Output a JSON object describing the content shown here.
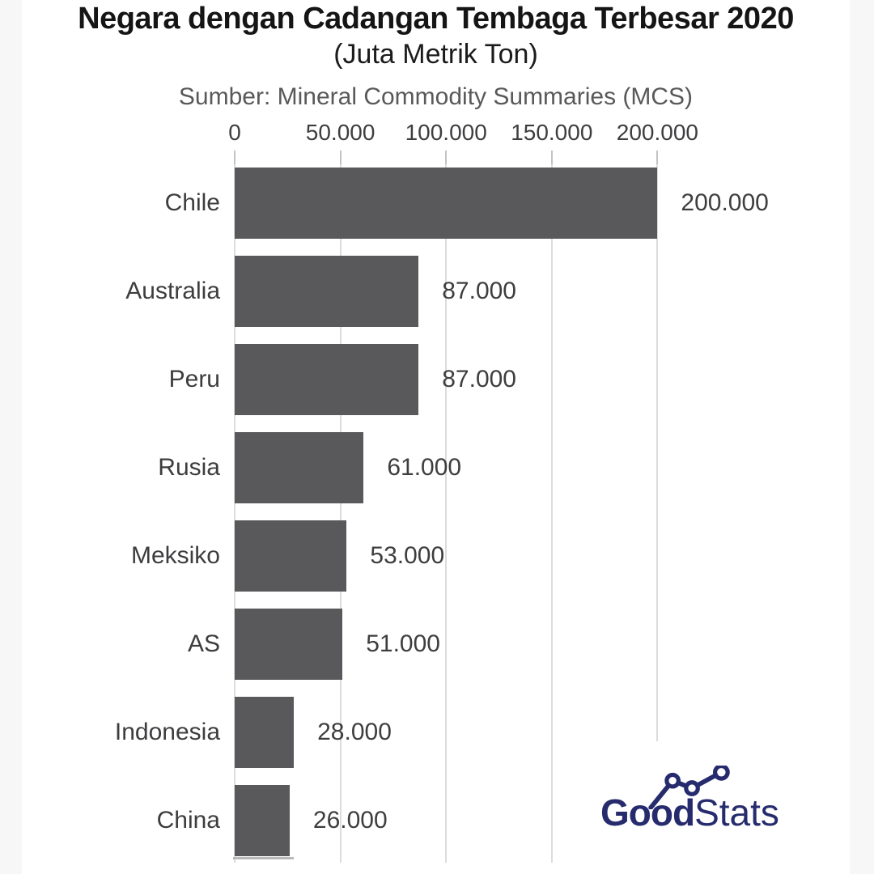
{
  "header": {
    "title": "Negara dengan Cadangan Tembaga Terbesar 2020",
    "subtitle": "(Juta Metrik Ton)",
    "source": "Sumber: Mineral Commodity Summaries (MCS)"
  },
  "chart_data": {
    "type": "bar",
    "orientation": "horizontal",
    "title": "Negara dengan Cadangan Tembaga Terbesar 2020",
    "unit": "Juta Metrik Ton",
    "categories": [
      "Chile",
      "Australia",
      "Peru",
      "Rusia",
      "Meksiko",
      "AS",
      "Indonesia",
      "China"
    ],
    "values": [
      200000,
      87000,
      87000,
      61000,
      53000,
      51000,
      28000,
      26000
    ],
    "value_labels": [
      "200.000",
      "87.000",
      "87.000",
      "61.000",
      "53.000",
      "51.000",
      "28.000",
      "26.000"
    ],
    "x_ticks": [
      0,
      50000,
      100000,
      150000,
      200000
    ],
    "x_tick_labels": [
      "0",
      "50.000",
      "100.000",
      "150.000",
      "200.000"
    ],
    "xlim": [
      0,
      290000
    ],
    "grid": true,
    "legend": false,
    "bar_color": "#59595b"
  },
  "logo": {
    "text_bold": "Good",
    "text_light": "Stats"
  },
  "colors": {
    "bar": "#59595b",
    "gridline": "#dcdcdc",
    "label": "#3d3d3f",
    "logo_navy": "#262b6d",
    "page_margin": "#f7f7f7"
  }
}
